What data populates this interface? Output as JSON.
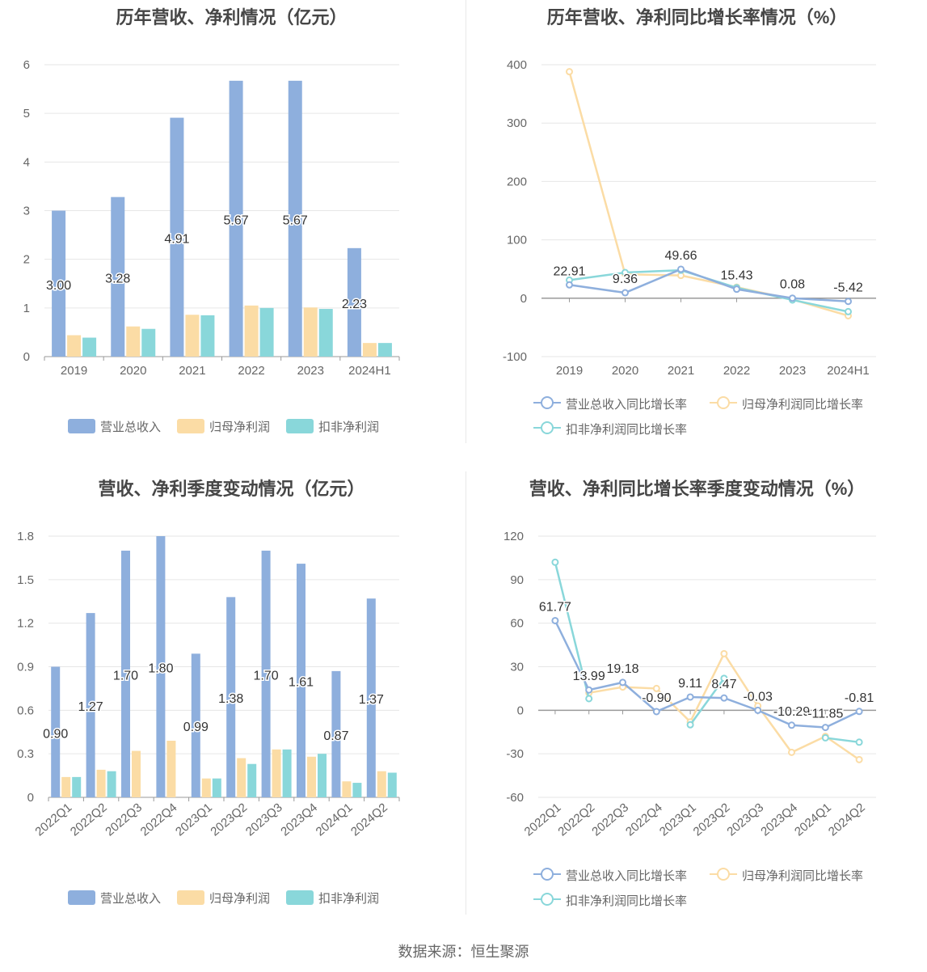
{
  "source": "数据来源：恒生聚源",
  "colors": {
    "revenue": "#8eafdd",
    "parent": "#fbdca5",
    "deducted": "#89d7da",
    "grid": "#e6e6e6",
    "axis": "#999999",
    "text": "#666666"
  },
  "chart_data": [
    {
      "id": "annual-bar",
      "type": "bar",
      "title": "历年营收、净利情况（亿元）",
      "categories": [
        "2019",
        "2020",
        "2021",
        "2022",
        "2023",
        "2024H1"
      ],
      "ylim": [
        0,
        6
      ],
      "yticks": [
        "0",
        "1",
        "2",
        "3",
        "4",
        "5",
        "6"
      ],
      "series": [
        {
          "name": "营业总收入",
          "values": [
            3.0,
            3.28,
            4.91,
            5.67,
            5.67,
            2.23
          ],
          "labels": [
            "3.00",
            "3.28",
            "4.91",
            "5.67",
            "5.67",
            "2.23"
          ]
        },
        {
          "name": "归母净利润",
          "values": [
            0.44,
            0.62,
            0.86,
            1.05,
            1.01,
            0.28
          ]
        },
        {
          "name": "扣非净利润",
          "values": [
            0.39,
            0.57,
            0.85,
            1.0,
            0.98,
            0.28
          ]
        }
      ]
    },
    {
      "id": "annual-line",
      "type": "line",
      "title": "历年营收、净利同比增长率情况（%）",
      "categories": [
        "2019",
        "2020",
        "2021",
        "2022",
        "2023",
        "2024H1"
      ],
      "ylim": [
        -100,
        400
      ],
      "yticks": [
        "-100",
        "0",
        "100",
        "200",
        "300",
        "400"
      ],
      "series": [
        {
          "name": "营业总收入同比增长率",
          "values": [
            22.91,
            9.36,
            49.66,
            15.43,
            0.08,
            -5.42
          ],
          "labels": [
            "22.91",
            "9.36",
            "49.66",
            "15.43",
            "0.08",
            "-5.42"
          ]
        },
        {
          "name": "归母净利润同比增长率",
          "values": [
            388,
            41,
            39,
            19,
            -2,
            -30
          ]
        },
        {
          "name": "扣非净利润同比增长率",
          "values": [
            31,
            44,
            48,
            18,
            -3,
            -23
          ]
        }
      ]
    },
    {
      "id": "quarter-bar",
      "type": "bar",
      "title": "营收、净利季度变动情况（亿元）",
      "categories": [
        "2022Q1",
        "2022Q2",
        "2022Q3",
        "2022Q4",
        "2023Q1",
        "2023Q2",
        "2023Q3",
        "2023Q4",
        "2024Q1",
        "2024Q2"
      ],
      "ylim": [
        0,
        1.8
      ],
      "yticks": [
        "0",
        "0.3",
        "0.6",
        "0.9",
        "1.2",
        "1.5",
        "1.8"
      ],
      "series": [
        {
          "name": "营业总收入",
          "values": [
            0.9,
            1.27,
            1.7,
            1.8,
            0.99,
            1.38,
            1.7,
            1.61,
            0.87,
            1.37
          ],
          "labels": [
            "0.90",
            "1.27",
            "1.70",
            "1.80",
            "0.99",
            "1.38",
            "1.70",
            "1.61",
            "0.87",
            "1.37"
          ]
        },
        {
          "name": "归母净利润",
          "values": [
            0.14,
            0.19,
            0.32,
            0.39,
            0.13,
            0.27,
            0.33,
            0.28,
            0.11,
            0.18
          ]
        },
        {
          "name": "扣非净利润",
          "values": [
            0.14,
            0.18,
            null,
            null,
            0.13,
            0.23,
            0.33,
            0.3,
            0.1,
            0.17
          ]
        }
      ]
    },
    {
      "id": "quarter-line",
      "type": "line",
      "title": "营收、净利同比增长率季度变动情况（%）",
      "categories": [
        "2022Q1",
        "2022Q2",
        "2022Q3",
        "2022Q4",
        "2023Q1",
        "2023Q2",
        "2023Q3",
        "2023Q4",
        "2024Q1",
        "2024Q2"
      ],
      "ylim": [
        -60,
        120
      ],
      "yticks": [
        "-60",
        "-30",
        "0",
        "30",
        "60",
        "90",
        "120"
      ],
      "series": [
        {
          "name": "营业总收入同比增长率",
          "values": [
            61.77,
            13.99,
            19.18,
            -0.9,
            9.11,
            8.47,
            -0.03,
            -10.29,
            -11.85,
            -0.81
          ],
          "labels": [
            "61.77",
            "13.99",
            "19.18",
            "-0.90",
            "9.11",
            "8.47",
            "-0.03",
            "-10.29",
            "-11.85",
            "-0.81"
          ]
        },
        {
          "name": "归母净利润同比增长率",
          "values": [
            null,
            12,
            16,
            15,
            -8,
            39,
            3,
            -29,
            -18,
            -34
          ]
        },
        {
          "name": "扣非净利润同比增长率",
          "values": [
            102,
            8,
            null,
            null,
            -10,
            22,
            null,
            null,
            -19,
            -22
          ]
        }
      ]
    }
  ]
}
